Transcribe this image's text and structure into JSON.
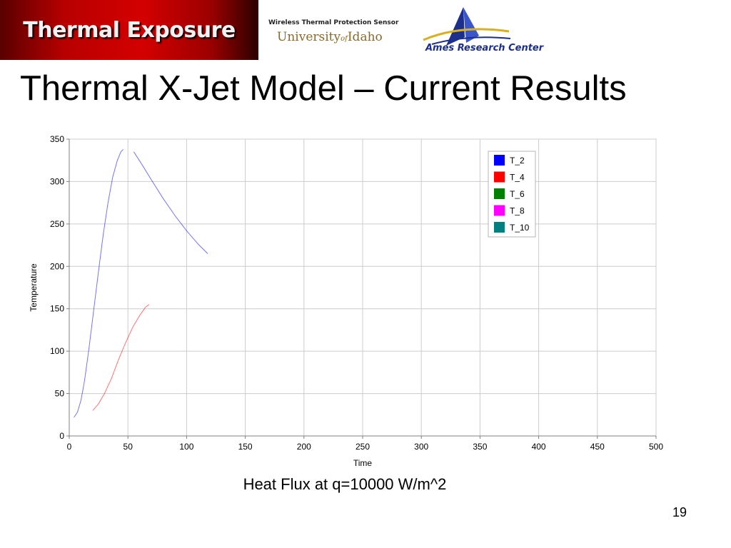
{
  "header": {
    "banner_text": "Thermal Exposure",
    "sensor_label": "Wireless Thermal Protection Sensor",
    "university_main": "University",
    "university_of": "of",
    "university_name": "Idaho",
    "ames_label": "Ames Research Center"
  },
  "slide": {
    "title": "Thermal X-Jet Model – Current Results",
    "caption": "Heat Flux at q=10000 W/m^2",
    "page_number": "19"
  },
  "colors": {
    "banner_red": "#c00000",
    "ames_blue": "#1c2f8c"
  },
  "chart_data": {
    "type": "line",
    "xlabel": "Time",
    "ylabel": "Temperature",
    "xlim": [
      0,
      500
    ],
    "ylim": [
      0,
      350
    ],
    "xticks": [
      0,
      50,
      100,
      150,
      200,
      250,
      300,
      350,
      400,
      450,
      500
    ],
    "yticks": [
      0,
      50,
      100,
      150,
      200,
      250,
      300,
      350
    ],
    "grid": true,
    "legend_position": "top-right",
    "series": [
      {
        "name": "T_2",
        "color": "#0000ff",
        "segments": [
          [
            [
              4,
              22
            ],
            [
              7,
              28
            ],
            [
              10,
              42
            ],
            [
              13,
              65
            ],
            [
              17,
              105
            ],
            [
              21,
              150
            ],
            [
              25,
              195
            ],
            [
              29,
              238
            ],
            [
              33,
              275
            ],
            [
              37,
              305
            ],
            [
              41,
              325
            ],
            [
              44,
              335
            ],
            [
              46,
              338
            ]
          ],
          [
            [
              55,
              335
            ],
            [
              62,
              320
            ],
            [
              70,
              302
            ],
            [
              80,
              280
            ],
            [
              90,
              260
            ],
            [
              100,
              242
            ],
            [
              110,
              226
            ],
            [
              118,
              215
            ]
          ]
        ]
      },
      {
        "name": "T_4",
        "color": "#ff0000",
        "segments": [
          [
            [
              20,
              30
            ],
            [
              25,
              38
            ],
            [
              30,
              50
            ],
            [
              36,
              68
            ],
            [
              42,
              90
            ],
            [
              48,
              110
            ],
            [
              54,
              128
            ],
            [
              60,
              142
            ],
            [
              65,
              152
            ],
            [
              68,
              155
            ]
          ]
        ]
      },
      {
        "name": "T_6",
        "color": "#008000",
        "segments": []
      },
      {
        "name": "T_8",
        "color": "#ff00ff",
        "segments": []
      },
      {
        "name": "T_10",
        "color": "#008080",
        "segments": []
      }
    ]
  }
}
